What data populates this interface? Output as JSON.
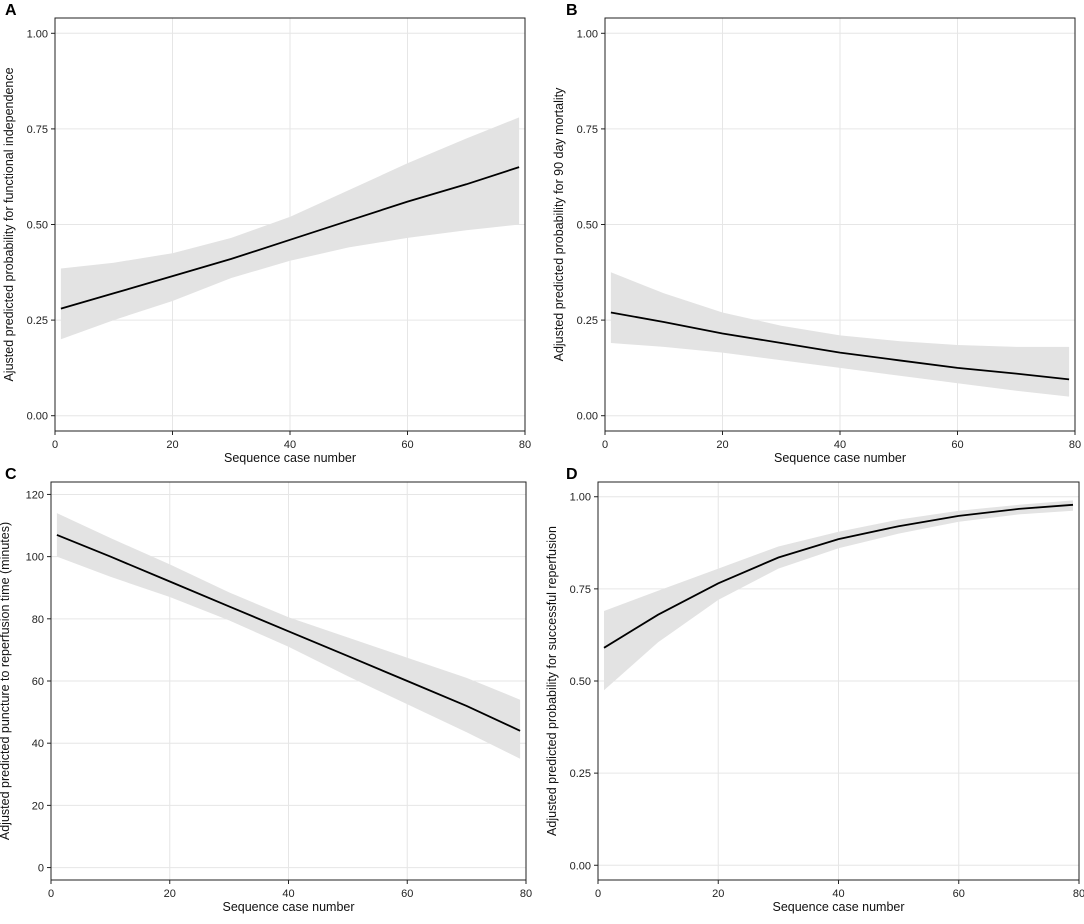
{
  "chart_data": [
    {
      "panel": "A",
      "type": "line",
      "ylabel": "Ajusted predicted probability for functional independence",
      "xlabel": "Sequence case number",
      "xlim": [
        0,
        80
      ],
      "ylim": [
        -0.04,
        1.04
      ],
      "xticks": [
        0,
        20,
        40,
        60,
        80
      ],
      "yticks": [
        0.0,
        0.25,
        0.5,
        0.75,
        1.0
      ],
      "ytick_labels": [
        "0.00",
        "0.25",
        "0.50",
        "0.75",
        "1.00"
      ],
      "x": [
        1,
        10,
        20,
        30,
        40,
        50,
        60,
        70,
        79
      ],
      "y": [
        0.28,
        0.32,
        0.365,
        0.41,
        0.46,
        0.51,
        0.56,
        0.605,
        0.65
      ],
      "ci_lower": [
        0.2,
        0.25,
        0.3,
        0.36,
        0.405,
        0.44,
        0.465,
        0.485,
        0.5
      ],
      "ci_upper": [
        0.385,
        0.4,
        0.425,
        0.465,
        0.52,
        0.59,
        0.66,
        0.725,
        0.78
      ]
    },
    {
      "panel": "B",
      "type": "line",
      "ylabel": "Adjusted predicted probability for 90 day mortality",
      "xlabel": "Sequence case number",
      "xlim": [
        0,
        80
      ],
      "ylim": [
        -0.04,
        1.04
      ],
      "xticks": [
        0,
        20,
        40,
        60,
        80
      ],
      "yticks": [
        0.0,
        0.25,
        0.5,
        0.75,
        1.0
      ],
      "ytick_labels": [
        "0.00",
        "0.25",
        "0.50",
        "0.75",
        "1.00"
      ],
      "x": [
        1,
        10,
        20,
        30,
        40,
        50,
        60,
        70,
        79
      ],
      "y": [
        0.27,
        0.245,
        0.215,
        0.19,
        0.165,
        0.145,
        0.125,
        0.11,
        0.095
      ],
      "ci_lower": [
        0.19,
        0.18,
        0.165,
        0.145,
        0.125,
        0.105,
        0.085,
        0.065,
        0.05
      ],
      "ci_upper": [
        0.375,
        0.32,
        0.27,
        0.235,
        0.21,
        0.195,
        0.185,
        0.18,
        0.18
      ]
    },
    {
      "panel": "C",
      "type": "line",
      "ylabel": "Adjusted predicted puncture to reperfusion time (minutes)",
      "xlabel": "Sequence case number",
      "xlim": [
        0,
        80
      ],
      "ylim": [
        -4,
        124
      ],
      "xticks": [
        0,
        20,
        40,
        60,
        80
      ],
      "yticks": [
        0,
        20,
        40,
        60,
        80,
        100,
        120
      ],
      "ytick_labels": [
        "0",
        "20",
        "40",
        "60",
        "80",
        "100",
        "120"
      ],
      "x": [
        1,
        10,
        20,
        30,
        40,
        50,
        60,
        70,
        79
      ],
      "y": [
        107,
        100,
        92,
        84,
        76,
        68,
        60,
        52,
        44
      ],
      "ci_lower": [
        100,
        93.5,
        87,
        79.5,
        71,
        61.5,
        52.5,
        43.5,
        35
      ],
      "ci_upper": [
        114,
        106,
        97.5,
        88.5,
        80.5,
        74,
        67.5,
        61,
        54
      ]
    },
    {
      "panel": "D",
      "type": "line",
      "ylabel": "Adjusted predicted probability for successful reperfusion",
      "xlabel": "Sequence case number",
      "xlim": [
        0,
        80
      ],
      "ylim": [
        -0.04,
        1.04
      ],
      "xticks": [
        0,
        20,
        40,
        60,
        80
      ],
      "yticks": [
        0.0,
        0.25,
        0.5,
        0.75,
        1.0
      ],
      "ytick_labels": [
        "0.00",
        "0.25",
        "0.50",
        "0.75",
        "1.00"
      ],
      "x": [
        1,
        10,
        20,
        30,
        40,
        50,
        60,
        70,
        79
      ],
      "y": [
        0.59,
        0.68,
        0.765,
        0.835,
        0.885,
        0.92,
        0.948,
        0.967,
        0.978
      ],
      "ci_lower": [
        0.475,
        0.605,
        0.72,
        0.805,
        0.86,
        0.9,
        0.932,
        0.952,
        0.962
      ],
      "ci_upper": [
        0.69,
        0.745,
        0.805,
        0.865,
        0.905,
        0.938,
        0.962,
        0.978,
        0.99
      ]
    }
  ]
}
